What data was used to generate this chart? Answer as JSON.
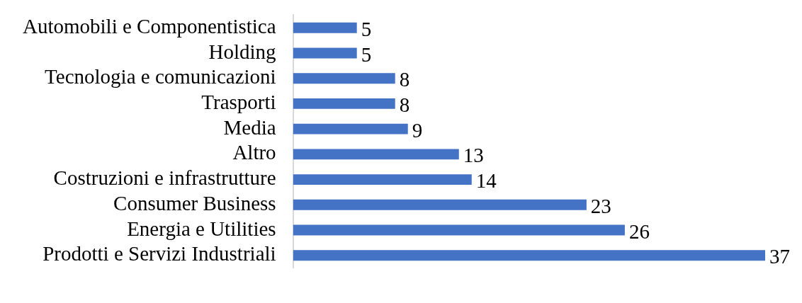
{
  "chart_data": {
    "type": "bar",
    "orientation": "horizontal",
    "categories": [
      "Automobili e Componentistica",
      "Holding",
      "Tecnologia e comunicazioni",
      "Trasporti",
      "Media",
      "Altro",
      "Costruzioni e infrastrutture",
      "Consumer Business",
      "Energia e Utilities",
      "Prodotti e Servizi Industriali"
    ],
    "values": [
      5,
      5,
      8,
      8,
      9,
      13,
      14,
      23,
      26,
      37
    ],
    "color": "#4472c4",
    "data_labels": true,
    "legend": false
  }
}
